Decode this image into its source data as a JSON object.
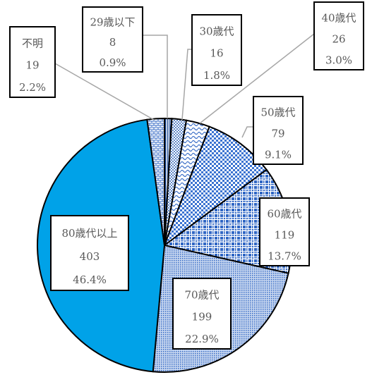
{
  "chart_data": {
    "type": "pie",
    "title": "",
    "start_angle_deg": 0,
    "direction": "clockwise",
    "slices": [
      {
        "label": "29歳以下",
        "value": 8,
        "percent": "0.9%",
        "fill": "pat-stripe",
        "color": "#1f4e9a"
      },
      {
        "label": "30歳代",
        "value": 16,
        "percent": "1.8%",
        "fill": "pat-dots",
        "color": "#2e63b8"
      },
      {
        "label": "40歳代",
        "value": 26,
        "percent": "3.0%",
        "fill": "pat-wave",
        "color": "#3a6ec7"
      },
      {
        "label": "50歳代",
        "value": 79,
        "percent": "9.1%",
        "fill": "pat-check",
        "color": "#3b73d1"
      },
      {
        "label": "60歳代",
        "value": 119,
        "percent": "13.7%",
        "fill": "pat-grid",
        "color": "#2f66c4"
      },
      {
        "label": "70歳代",
        "value": 199,
        "percent": "22.9%",
        "fill": "pat-fine",
        "color": "#3a6ec7"
      },
      {
        "label": "80歳代以上",
        "value": 403,
        "percent": "46.4%",
        "fill": "solid",
        "color": "#00a2e8"
      },
      {
        "label": "不明",
        "value": 19,
        "percent": "2.2%",
        "fill": "pat-bricks",
        "color": "#3a6ec7"
      }
    ]
  }
}
